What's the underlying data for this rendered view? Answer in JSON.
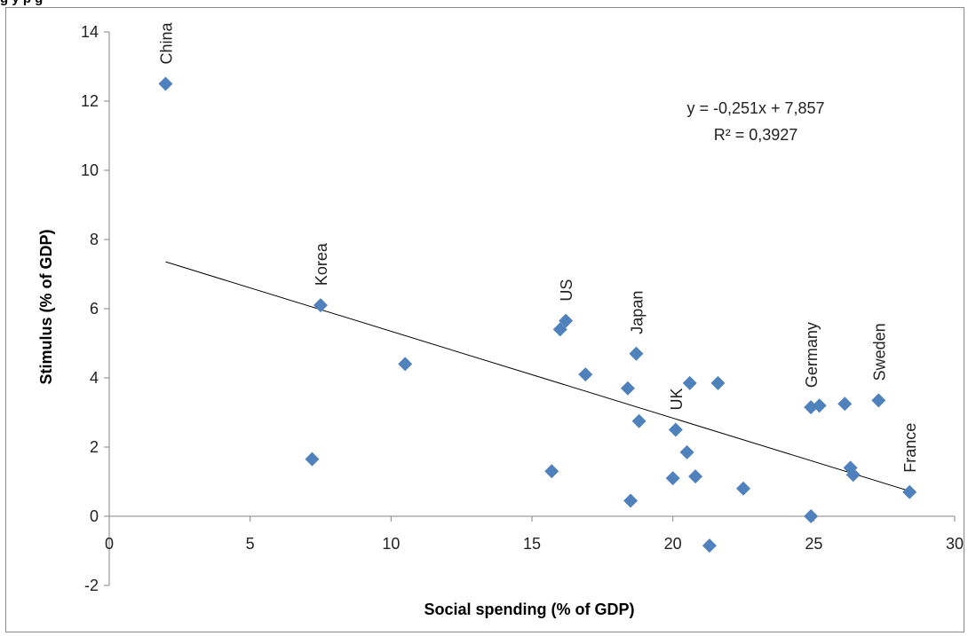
{
  "chart_data": {
    "type": "scatter",
    "title": "",
    "top_caption": "g                                                                        y p      g",
    "xlabel": "Social spending (% of GDP)",
    "ylabel": "Stimulus (% of GDP)",
    "xlim": [
      0,
      30
    ],
    "ylim": [
      -2,
      14
    ],
    "x_ticks": [
      0,
      5,
      10,
      15,
      20,
      25,
      30
    ],
    "y_ticks": [
      -2,
      0,
      2,
      4,
      6,
      8,
      10,
      12,
      14
    ],
    "marker_color": "#4f81bd",
    "line_color": "#000000",
    "points": [
      {
        "x": 2.0,
        "y": 12.5,
        "label": "China"
      },
      {
        "x": 7.5,
        "y": 6.1,
        "label": "Korea"
      },
      {
        "x": 7.2,
        "y": 1.65,
        "label": ""
      },
      {
        "x": 10.5,
        "y": 4.4,
        "label": ""
      },
      {
        "x": 15.7,
        "y": 1.3,
        "label": ""
      },
      {
        "x": 16.0,
        "y": 5.4,
        "label": ""
      },
      {
        "x": 16.2,
        "y": 5.65,
        "label": "US"
      },
      {
        "x": 16.9,
        "y": 4.1,
        "label": ""
      },
      {
        "x": 18.4,
        "y": 3.7,
        "label": ""
      },
      {
        "x": 18.5,
        "y": 0.45,
        "label": ""
      },
      {
        "x": 18.7,
        "y": 4.7,
        "label": "Japan"
      },
      {
        "x": 18.8,
        "y": 2.75,
        "label": ""
      },
      {
        "x": 20.0,
        "y": 1.1,
        "label": ""
      },
      {
        "x": 20.1,
        "y": 2.5,
        "label": "UK"
      },
      {
        "x": 20.5,
        "y": 1.85,
        "label": ""
      },
      {
        "x": 20.6,
        "y": 3.85,
        "label": ""
      },
      {
        "x": 20.8,
        "y": 1.15,
        "label": ""
      },
      {
        "x": 21.3,
        "y": -0.85,
        "label": ""
      },
      {
        "x": 21.6,
        "y": 3.85,
        "label": ""
      },
      {
        "x": 22.5,
        "y": 0.8,
        "label": ""
      },
      {
        "x": 24.9,
        "y": 3.15,
        "label": "Germany"
      },
      {
        "x": 24.9,
        "y": 0.0,
        "label": ""
      },
      {
        "x": 25.2,
        "y": 3.2,
        "label": ""
      },
      {
        "x": 26.1,
        "y": 3.25,
        "label": ""
      },
      {
        "x": 26.3,
        "y": 1.4,
        "label": ""
      },
      {
        "x": 26.4,
        "y": 1.2,
        "label": ""
      },
      {
        "x": 27.3,
        "y": 3.35,
        "label": "Sweden"
      },
      {
        "x": 28.4,
        "y": 0.7,
        "label": "France"
      }
    ],
    "trendline": {
      "slope": -0.251,
      "intercept": 7.857,
      "x_range": [
        2.0,
        28.4
      ],
      "equation": "y = -0,251x + 7,857",
      "r_squared": "R² = 0,3927"
    }
  }
}
